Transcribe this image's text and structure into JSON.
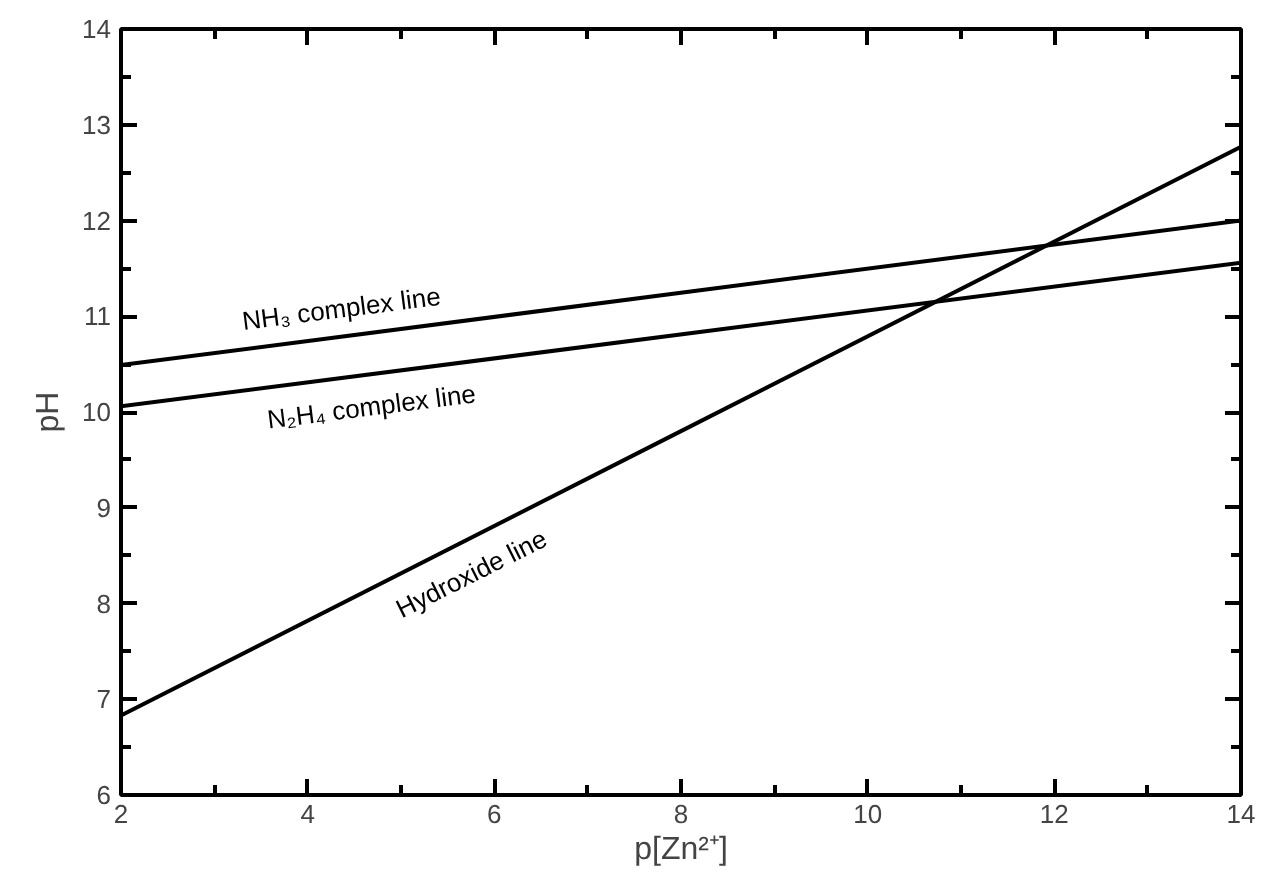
{
  "chart_data": {
    "type": "line",
    "xlabel": "p[Zn²⁺]",
    "ylabel": "pH",
    "xlim": [
      2,
      14
    ],
    "ylim": [
      6,
      14
    ],
    "xticks": [
      2,
      4,
      6,
      8,
      10,
      12,
      14
    ],
    "yticks": [
      6,
      7,
      8,
      9,
      10,
      11,
      12,
      13,
      14
    ],
    "grid": false,
    "marker": "none",
    "line_style": "solid",
    "series": [
      {
        "name": "NH₃ complex line",
        "color": "#000000",
        "x": [
          2,
          14
        ],
        "values": [
          10.49,
          12.0
        ]
      },
      {
        "name": "N₂H₄ complex line",
        "color": "#000000",
        "x": [
          2,
          14
        ],
        "values": [
          10.06,
          11.56
        ]
      },
      {
        "name": "Hydroxide line",
        "color": "#000000",
        "x": [
          2,
          8,
          14
        ],
        "values": [
          6.83,
          9.8,
          12.77
        ]
      }
    ]
  }
}
